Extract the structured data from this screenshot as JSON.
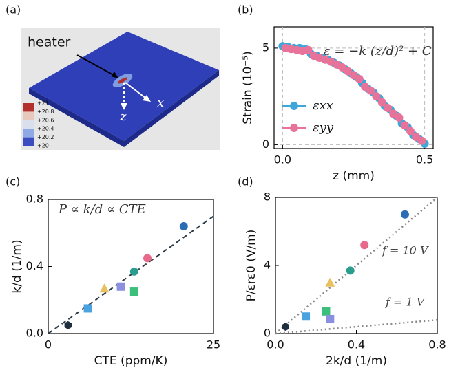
{
  "chart_data": [
    {
      "type": "render",
      "label": "(a)",
      "annotations": {
        "heater": "heater",
        "x": "x",
        "z": "z"
      },
      "colorbar": {
        "ticks": [
          {
            "value": 21,
            "label": "+21"
          },
          {
            "value": 20.8,
            "label": "+20.8"
          },
          {
            "value": 20.6,
            "label": "+20.6"
          },
          {
            "value": 20.4,
            "label": "+20.4"
          },
          {
            "value": 20.2,
            "label": "+20.2"
          },
          {
            "value": 20,
            "label": "+20"
          }
        ],
        "colors": [
          "#3a4cc0",
          "#8fa8e6",
          "#d9dfec",
          "#e8c8bc",
          "#b2302e"
        ]
      }
    },
    {
      "type": "scatter",
      "label": "(b)",
      "xlabel": "z (mm)",
      "ylabel": "Strain (10⁻⁵)",
      "annotation": "ε = −k (z/d)² + C",
      "legend": "lower left",
      "grid": true,
      "xlim": [
        -0.03,
        0.53
      ],
      "xticks": [
        {
          "value": 0,
          "label": "0.0"
        },
        {
          "value": 0.5,
          "label": "0.5"
        }
      ],
      "ylim": [
        -0.2,
        6.1
      ],
      "yticks": [
        0,
        5
      ],
      "series": [
        {
          "name": "εxx",
          "color": "#3ea6d8",
          "x": [
            0,
            0.02,
            0.04,
            0.06,
            0.08,
            0.1,
            0.12,
            0.14,
            0.16,
            0.18,
            0.2,
            0.22,
            0.24,
            0.26,
            0.28,
            0.3,
            0.32,
            0.34,
            0.36,
            0.38,
            0.4,
            0.42,
            0.44,
            0.46,
            0.48,
            0.5
          ],
          "values": [
            5.1,
            5.05,
            5.0,
            5.0,
            4.95,
            4.7,
            4.6,
            4.5,
            4.4,
            4.25,
            4.1,
            3.9,
            3.7,
            3.5,
            3.2,
            2.9,
            2.7,
            2.4,
            2.0,
            1.8,
            1.5,
            1.1,
            0.9,
            0.5,
            0.3,
            0.05
          ]
        },
        {
          "name": "εyy",
          "color": "#e8739a",
          "x": [
            0.01,
            0.03,
            0.05,
            0.07,
            0.09,
            0.11,
            0.13,
            0.15,
            0.17,
            0.19,
            0.21,
            0.23,
            0.25,
            0.27,
            0.29,
            0.31,
            0.33,
            0.35,
            0.37,
            0.39,
            0.41,
            0.43,
            0.45,
            0.47,
            0.49
          ],
          "values": [
            5.0,
            4.95,
            4.9,
            4.85,
            4.9,
            4.6,
            4.5,
            4.4,
            4.3,
            4.15,
            4.0,
            3.8,
            3.6,
            3.4,
            3.0,
            2.8,
            2.5,
            2.2,
            1.9,
            1.6,
            1.4,
            1.0,
            0.7,
            0.4,
            0.2
          ]
        }
      ]
    },
    {
      "type": "scatter",
      "label": "(c)",
      "xlabel": "CTE (ppm/K)",
      "ylabel": "k/d (1/m)",
      "annotation": "P ∝ k/d ∝ CTE",
      "xlim": [
        0,
        25
      ],
      "xticks": [
        0,
        25
      ],
      "ylim": [
        0,
        0.8
      ],
      "yticks": [
        {
          "value": 0,
          "label": "0.0"
        },
        {
          "value": 0.4,
          "label": "0.4"
        },
        {
          "value": 0.8,
          "label": "0.8"
        }
      ],
      "x": [
        3,
        6,
        8.5,
        11,
        13,
        13,
        15,
        20.5
      ],
      "values": [
        0.05,
        0.15,
        0.27,
        0.28,
        0.25,
        0.37,
        0.45,
        0.64
      ],
      "markers": [
        "hexagon",
        "square",
        "triangle",
        "square",
        "square",
        "circle",
        "circle",
        "circle"
      ],
      "colors": [
        "#1f2f3f",
        "#4aa3e0",
        "#e8c060",
        "#8a8fe0",
        "#3cbf7a",
        "#2a9d8f",
        "#e86a8a",
        "#2a6db5"
      ],
      "lines": [
        {
          "x": [
            0,
            25
          ],
          "y": [
            0,
            0.7
          ],
          "style": "dashed"
        }
      ]
    },
    {
      "type": "scatter",
      "label": "(d)",
      "xlabel": "2k/d (1/m)",
      "ylabel": "P/εrε0 (V/m)",
      "xlim": [
        0,
        0.8
      ],
      "xticks": [
        {
          "value": 0,
          "label": "0.0"
        },
        {
          "value": 0.4,
          "label": "0.4"
        },
        {
          "value": 0.8,
          "label": "0.8"
        }
      ],
      "ylim": [
        0,
        8
      ],
      "yticks": [
        0,
        4,
        8
      ],
      "x": [
        0.05,
        0.15,
        0.25,
        0.27,
        0.27,
        0.37,
        0.44,
        0.64
      ],
      "values": [
        0.4,
        1.0,
        1.3,
        0.85,
        3.0,
        3.7,
        5.2,
        7.0
      ],
      "markers": [
        "hexagon",
        "square",
        "square",
        "square",
        "triangle",
        "circle",
        "circle",
        "circle"
      ],
      "colors": [
        "#1f2f3f",
        "#4aa3e0",
        "#3cbf7a",
        "#8a8fe0",
        "#e8c060",
        "#2a9d8f",
        "#e86a8a",
        "#2a6db5"
      ],
      "lines": [
        {
          "x": [
            0,
            0.8
          ],
          "y": [
            0,
            8
          ],
          "style": "dotted",
          "label": "f = 10 V"
        },
        {
          "x": [
            0,
            0.8
          ],
          "y": [
            0,
            0.8
          ],
          "style": "dotted",
          "label": "f = 1 V"
        }
      ]
    }
  ]
}
